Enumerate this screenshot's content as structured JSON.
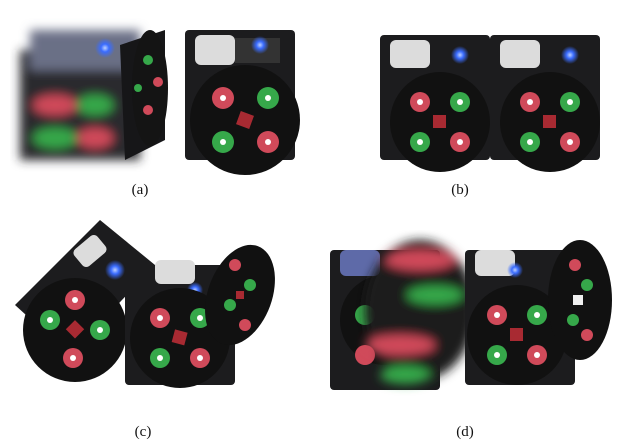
{
  "figure": {
    "panels": [
      {
        "id": "a",
        "caption": "(a)"
      },
      {
        "id": "b",
        "caption": "(b)"
      },
      {
        "id": "c",
        "caption": "(c)"
      },
      {
        "id": "d",
        "caption": "(d)"
      }
    ]
  },
  "colors": {
    "module_body": "#1c1c1e",
    "face": "#111111",
    "red_magnet": "#d04a5a",
    "green_magnet": "#36a84a",
    "blue_led": "#3a6cff"
  }
}
